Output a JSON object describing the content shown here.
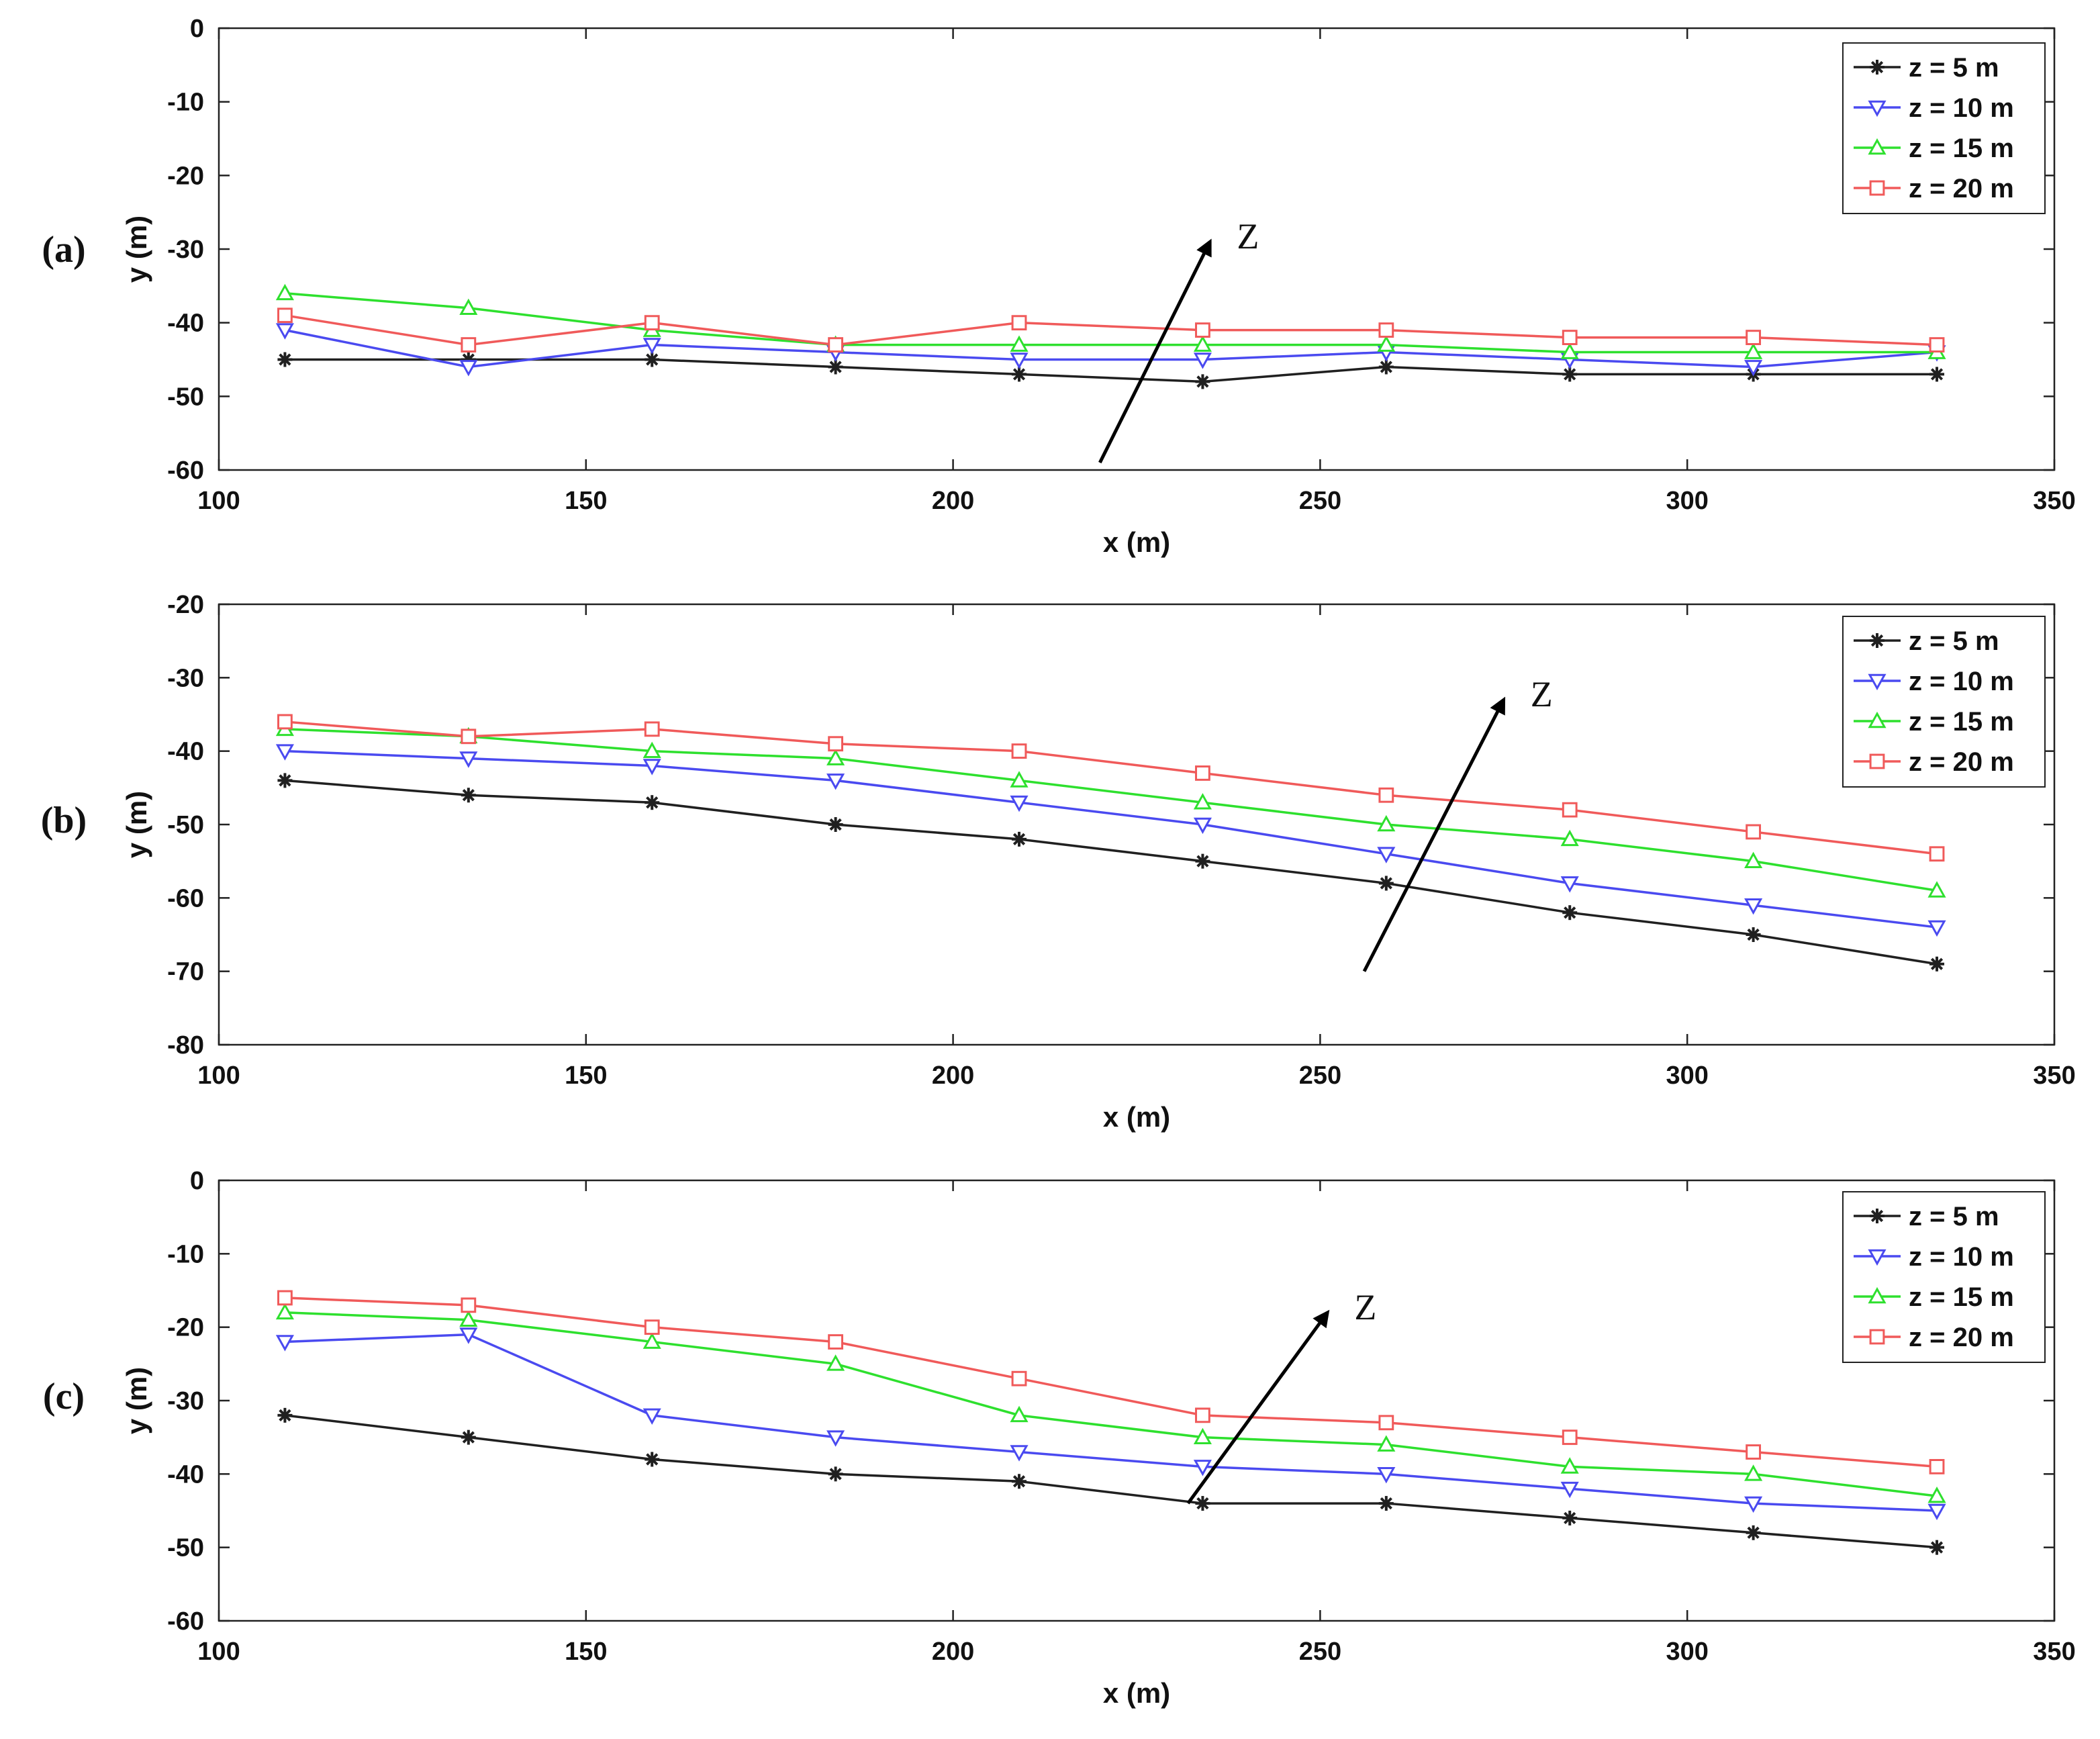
{
  "figure": {
    "x_ticks": [
      100,
      150,
      200,
      250,
      300,
      350
    ],
    "legend": [
      {
        "label": "z = 5 m",
        "color": "#202020",
        "marker": "star"
      },
      {
        "label": "z = 10 m",
        "color": "#4a4af0",
        "marker": "triangle-down"
      },
      {
        "label": "z = 15 m",
        "color": "#2ee02e",
        "marker": "triangle-up"
      },
      {
        "label": "z = 20 m",
        "color": "#f05a5a",
        "marker": "square"
      }
    ],
    "arrow_label": "Z"
  },
  "chart_data": [
    {
      "type": "line",
      "panel_label": "(a)",
      "xlabel": "x (m)",
      "ylabel": "y (m)",
      "xlim": [
        100,
        350
      ],
      "ylim": [
        -60,
        0
      ],
      "y_ticks": [
        0,
        -10,
        -20,
        -30,
        -40,
        -50,
        -60
      ],
      "x": [
        109,
        134,
        159,
        184,
        209,
        234,
        259,
        284,
        309,
        334
      ],
      "series": [
        {
          "name": "z = 5 m",
          "values": [
            -45,
            -45,
            -45,
            -46,
            -47,
            -48,
            -46,
            -47,
            -47,
            -47
          ]
        },
        {
          "name": "z = 10 m",
          "values": [
            -41,
            -46,
            -43,
            -44,
            -45,
            -45,
            -44,
            -45,
            -46,
            -44
          ]
        },
        {
          "name": "z = 15 m",
          "values": [
            -36,
            -38,
            -41,
            -43,
            -43,
            -43,
            -43,
            -44,
            -44,
            -44
          ]
        },
        {
          "name": "z = 20 m",
          "values": [
            -39,
            -43,
            -40,
            -43,
            -40,
            -41,
            -41,
            -42,
            -42,
            -43
          ]
        }
      ],
      "annotation": {
        "label": "Z",
        "from": [
          220,
          -59
        ],
        "to": [
          235,
          -29
        ]
      }
    },
    {
      "type": "line",
      "panel_label": "(b)",
      "xlabel": "x (m)",
      "ylabel": "y (m)",
      "xlim": [
        100,
        350
      ],
      "ylim": [
        -80,
        -20
      ],
      "y_ticks": [
        -20,
        -30,
        -40,
        -50,
        -60,
        -70,
        -80
      ],
      "x": [
        109,
        134,
        159,
        184,
        209,
        234,
        259,
        284,
        309,
        334
      ],
      "series": [
        {
          "name": "z = 5 m",
          "values": [
            -44,
            -46,
            -47,
            -50,
            -52,
            -55,
            -58,
            -62,
            -65,
            -69
          ]
        },
        {
          "name": "z = 10 m",
          "values": [
            -40,
            -41,
            -42,
            -44,
            -47,
            -50,
            -54,
            -58,
            -61,
            -64
          ]
        },
        {
          "name": "z = 15 m",
          "values": [
            -37,
            -38,
            -40,
            -41,
            -44,
            -47,
            -50,
            -52,
            -55,
            -59
          ]
        },
        {
          "name": "z = 20 m",
          "values": [
            -36,
            -38,
            -37,
            -39,
            -40,
            -43,
            -46,
            -48,
            -51,
            -54
          ]
        }
      ],
      "annotation": {
        "label": "Z",
        "from": [
          256,
          -70
        ],
        "to": [
          275,
          -33
        ]
      }
    },
    {
      "type": "line",
      "panel_label": "(c)",
      "xlabel": "x (m)",
      "ylabel": "y (m)",
      "xlim": [
        100,
        350
      ],
      "ylim": [
        -60,
        0
      ],
      "y_ticks": [
        0,
        -10,
        -20,
        -30,
        -40,
        -50,
        -60
      ],
      "x": [
        109,
        134,
        159,
        184,
        209,
        234,
        259,
        284,
        309,
        334
      ],
      "series": [
        {
          "name": "z = 5 m",
          "values": [
            -32,
            -35,
            -38,
            -40,
            -41,
            -44,
            -44,
            -46,
            -48,
            -50
          ]
        },
        {
          "name": "z = 10 m",
          "values": [
            -22,
            -21,
            -32,
            -35,
            -37,
            -39,
            -40,
            -42,
            -44,
            -45
          ]
        },
        {
          "name": "z = 15 m",
          "values": [
            -18,
            -19,
            -22,
            -25,
            -32,
            -35,
            -36,
            -39,
            -40,
            -43
          ]
        },
        {
          "name": "z = 20 m",
          "values": [
            -16,
            -17,
            -20,
            -22,
            -27,
            -32,
            -33,
            -35,
            -37,
            -39
          ]
        }
      ],
      "annotation": {
        "label": "Z",
        "from": [
          232,
          -44
        ],
        "to": [
          251,
          -18
        ]
      }
    }
  ]
}
